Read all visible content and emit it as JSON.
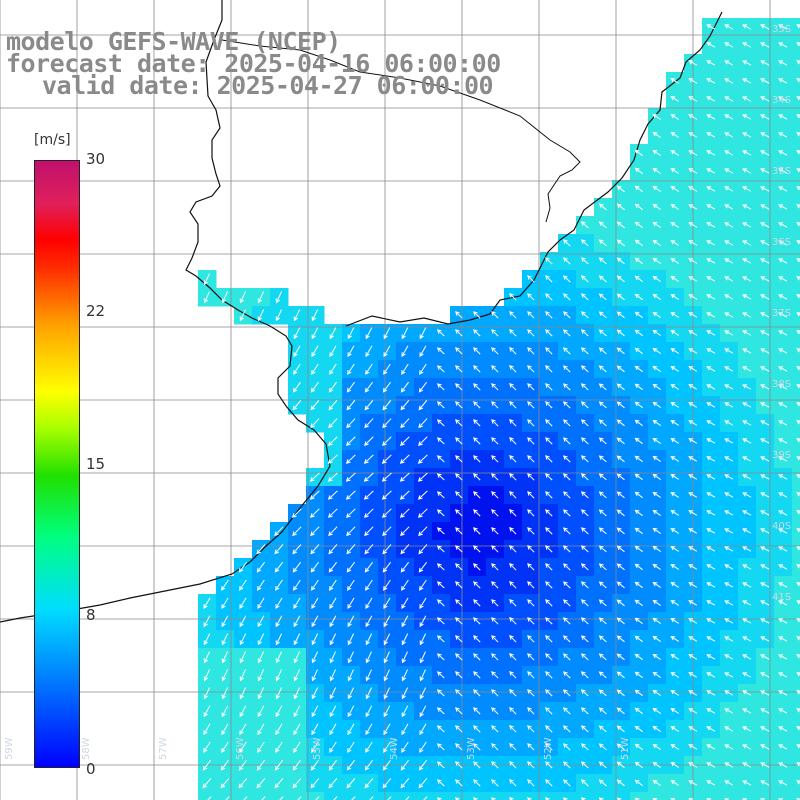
{
  "title": {
    "line1": "modelo GEFS-WAVE (NCEP)",
    "line2": "forecast date: 2025-04-16 06:00:00",
    "line3": "valid date: 2025-04-27 06:00:00"
  },
  "colorbar": {
    "unit": "[m/s]",
    "ticks": [
      "30",
      "22",
      "15",
      "8",
      "0"
    ],
    "values": [
      30,
      22,
      15,
      8,
      0
    ],
    "colors": [
      "#0000ff",
      "#0070ff",
      "#00ddff",
      "#00ff80",
      "#20e000",
      "#aaff00",
      "#ffff00",
      "#ffa000",
      "#ff3000",
      "#ff0000",
      "#e0205a",
      "#c0106e"
    ]
  },
  "map": {
    "field": "wind speed and direction",
    "land_color": "#ffffff",
    "grid_color": "#888888",
    "lat_labels": [
      "33S",
      "34S",
      "35S",
      "36S",
      "37S",
      "38S",
      "39S",
      "40S",
      "41S"
    ],
    "lon_labels": [
      "59W",
      "58W",
      "57W",
      "56W",
      "55W",
      "54W",
      "53W",
      "52W",
      "51W"
    ]
  }
}
